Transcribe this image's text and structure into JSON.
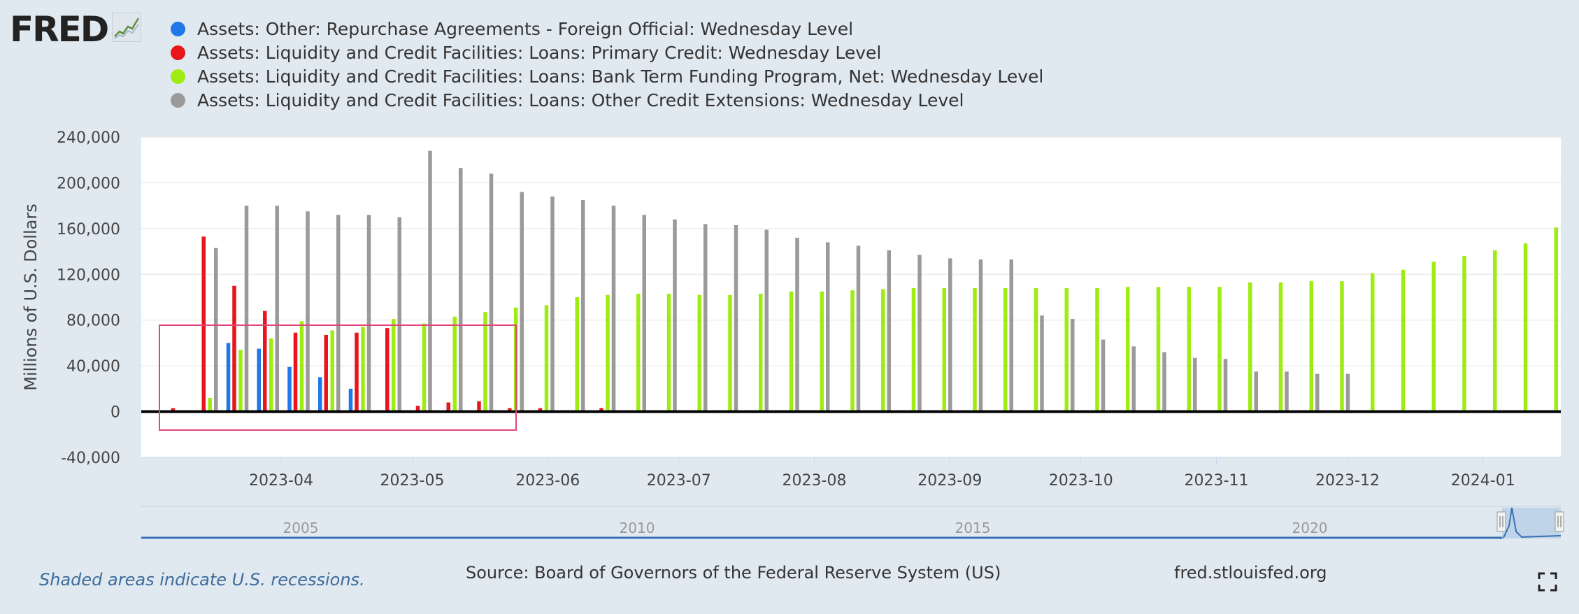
{
  "logo": {
    "text": "FRED",
    "icon": "trend-line-icon"
  },
  "legend": [
    {
      "label": "Assets: Other: Repurchase Agreements - Foreign Official: Wednesday Level",
      "color": "#1f77e8"
    },
    {
      "label": "Assets: Liquidity and Credit Facilities: Loans: Primary Credit: Wednesday Level",
      "color": "#e8161b"
    },
    {
      "label": "Assets: Liquidity and Credit Facilities: Loans: Bank Term Funding Program, Net: Wednesday Level",
      "color": "#9eec12"
    },
    {
      "label": "Assets: Liquidity and Credit Facilities: Loans: Other Credit Extensions: Wednesday Level",
      "color": "#9a9a9a"
    }
  ],
  "chart_data": {
    "type": "bar",
    "ylabel": "Millions of U.S. Dollars",
    "ylim": [
      -40000,
      240000
    ],
    "yticks": [
      -40000,
      0,
      40000,
      80000,
      120000,
      160000,
      200000,
      240000
    ],
    "ytick_labels": [
      "-40,000",
      "0",
      "40,000",
      "80,000",
      "120,000",
      "160,000",
      "200,000",
      "240,000"
    ],
    "x": [
      "2023-03-08",
      "2023-03-15",
      "2023-03-22",
      "2023-03-29",
      "2023-04-05",
      "2023-04-12",
      "2023-04-19",
      "2023-04-26",
      "2023-05-03",
      "2023-05-10",
      "2023-05-17",
      "2023-05-24",
      "2023-05-31",
      "2023-06-07",
      "2023-06-14",
      "2023-06-21",
      "2023-06-28",
      "2023-07-05",
      "2023-07-12",
      "2023-07-19",
      "2023-07-26",
      "2023-08-02",
      "2023-08-09",
      "2023-08-16",
      "2023-08-23",
      "2023-08-30",
      "2023-09-06",
      "2023-09-13",
      "2023-09-20",
      "2023-09-27",
      "2023-10-04",
      "2023-10-11",
      "2023-10-18",
      "2023-10-25",
      "2023-11-01",
      "2023-11-08",
      "2023-11-15",
      "2023-11-22",
      "2023-11-29",
      "2023-12-06",
      "2023-12-13",
      "2023-12-20",
      "2023-12-27",
      "2024-01-03",
      "2024-01-10",
      "2024-01-17"
    ],
    "xticks": [
      "2023-04-01",
      "2023-05-01",
      "2023-06-01",
      "2023-07-01",
      "2023-08-01",
      "2023-09-01",
      "2023-10-01",
      "2023-11-01",
      "2023-12-01",
      "2024-01-01"
    ],
    "xtick_labels": [
      "2023-04",
      "2023-05",
      "2023-06",
      "2023-07",
      "2023-08",
      "2023-09",
      "2023-10",
      "2023-11",
      "2023-12",
      "2024-01"
    ],
    "series": [
      {
        "name": "Assets: Other: Repurchase Agreements - Foreign Official: Wednesday Level",
        "color": "#1f77e8",
        "values": [
          0,
          0,
          60000,
          55000,
          39000,
          30000,
          20000,
          0,
          0,
          0,
          0,
          0,
          0,
          0,
          0,
          0,
          0,
          0,
          0,
          0,
          0,
          0,
          0,
          0,
          0,
          0,
          0,
          0,
          0,
          0,
          0,
          0,
          0,
          0,
          0,
          0,
          0,
          0,
          0,
          0,
          0,
          0,
          0,
          0,
          0,
          0
        ]
      },
      {
        "name": "Assets: Liquidity and Credit Facilities: Loans: Primary Credit: Wednesday Level",
        "color": "#e8161b",
        "values": [
          3000,
          153000,
          110000,
          88000,
          69000,
          67000,
          69000,
          73000,
          5000,
          8000,
          9000,
          3000,
          3000,
          0,
          3000,
          0,
          0,
          0,
          0,
          0,
          0,
          0,
          0,
          0,
          0,
          0,
          0,
          0,
          0,
          0,
          0,
          0,
          0,
          0,
          0,
          0,
          0,
          0,
          0,
          0,
          0,
          0,
          0,
          0,
          0,
          0
        ]
      },
      {
        "name": "Assets: Liquidity and Credit Facilities: Loans: Bank Term Funding Program, Net: Wednesday Level",
        "color": "#9eec12",
        "values": [
          0,
          12000,
          54000,
          64000,
          79000,
          71000,
          74000,
          81000,
          77000,
          83000,
          87000,
          91000,
          93000,
          100000,
          102000,
          103000,
          103000,
          102000,
          102000,
          103000,
          105000,
          105000,
          106000,
          107000,
          108000,
          108000,
          108000,
          108000,
          108000,
          108000,
          108000,
          109000,
          109000,
          109000,
          109000,
          113000,
          113000,
          114000,
          114000,
          121000,
          124000,
          131000,
          136000,
          141000,
          147000,
          161000
        ]
      },
      {
        "name": "Assets: Liquidity and Credit Facilities: Loans: Other Credit Extensions: Wednesday Level",
        "color": "#9a9a9a",
        "values": [
          0,
          143000,
          180000,
          180000,
          175000,
          172000,
          172000,
          170000,
          228000,
          213000,
          208000,
          192000,
          188000,
          185000,
          180000,
          172000,
          168000,
          164000,
          163000,
          159000,
          152000,
          148000,
          145000,
          141000,
          137000,
          134000,
          133000,
          133000,
          84000,
          81000,
          63000,
          57000,
          52000,
          47000,
          46000,
          35000,
          35000,
          33000,
          33000,
          0,
          0,
          0,
          0,
          0,
          0,
          0
        ]
      }
    ],
    "navigator": {
      "labels": [
        "2005",
        "2010",
        "2015",
        "2020"
      ]
    },
    "annotation": "pink rectangle highlighting early period"
  },
  "footer": {
    "note": "Shaded areas indicate U.S. recessions.",
    "source": "Source: Board of Governors of the Federal Reserve System (US)",
    "site": "fred.stlouisfed.org",
    "fullscreen_icon": "fullscreen-icon"
  }
}
